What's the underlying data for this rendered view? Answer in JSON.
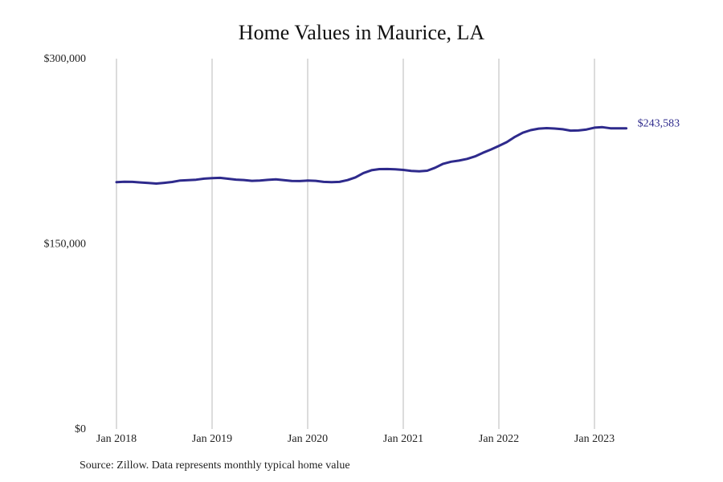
{
  "chart_data": {
    "type": "line",
    "title": "Home Values in Maurice, LA",
    "xlabel": "",
    "ylabel": "",
    "ylim": [
      0,
      300000
    ],
    "y_ticks": [
      {
        "value": 0,
        "label": "$0"
      },
      {
        "value": 150000,
        "label": "$150,000"
      },
      {
        "value": 300000,
        "label": "$300,000"
      }
    ],
    "x_ticks": [
      {
        "value": 2018.0,
        "label": "Jan 2018"
      },
      {
        "value": 2019.0,
        "label": "Jan 2019"
      },
      {
        "value": 2020.0,
        "label": "Jan 2020"
      },
      {
        "value": 2021.0,
        "label": "Jan 2021"
      },
      {
        "value": 2022.0,
        "label": "Jan 2022"
      },
      {
        "value": 2023.0,
        "label": "Jan 2023"
      }
    ],
    "grid": {
      "vertical": true,
      "horizontal": false
    },
    "line_color": "#2e2a8c",
    "end_label": "$243,583",
    "series": [
      {
        "x": [
          2018.0,
          2018.083,
          2018.167,
          2018.25,
          2018.333,
          2018.417,
          2018.5,
          2018.583,
          2018.667,
          2018.75,
          2018.833,
          2018.917,
          2019.0,
          2019.083,
          2019.167,
          2019.25,
          2019.333,
          2019.417,
          2019.5,
          2019.583,
          2019.667,
          2019.75,
          2019.833,
          2019.917,
          2020.0,
          2020.083,
          2020.167,
          2020.25,
          2020.333,
          2020.417,
          2020.5,
          2020.583,
          2020.667,
          2020.75,
          2020.833,
          2020.917,
          2021.0,
          2021.083,
          2021.167,
          2021.25,
          2021.333,
          2021.417,
          2021.5,
          2021.583,
          2021.667,
          2021.75,
          2021.833,
          2021.917,
          2022.0,
          2022.083,
          2022.167,
          2022.25,
          2022.333,
          2022.417,
          2022.5,
          2022.583,
          2022.667,
          2022.75,
          2022.833,
          2022.917,
          2023.0,
          2023.083,
          2023.167,
          2023.25,
          2023.333
        ],
        "values": [
          200000,
          200300,
          200200,
          199700,
          199300,
          198800,
          199400,
          200100,
          201300,
          201600,
          201900,
          202800,
          203200,
          203400,
          202700,
          202000,
          201700,
          201000,
          201300,
          201800,
          202200,
          201600,
          200900,
          200800,
          201200,
          201000,
          200200,
          200000,
          200200,
          201600,
          203800,
          207300,
          209600,
          210500,
          210600,
          210300,
          209900,
          209100,
          208700,
          209200,
          211600,
          214800,
          216500,
          217400,
          218800,
          220800,
          223700,
          226400,
          229300,
          232400,
          236600,
          240000,
          242100,
          243300,
          243700,
          243400,
          242800,
          241700,
          241800,
          242600,
          244100,
          244500,
          243583,
          243583,
          243583
        ]
      }
    ]
  },
  "source": "Source: Zillow. Data represents monthly typical home value"
}
